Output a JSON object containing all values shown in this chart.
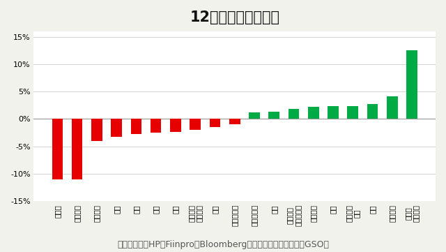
{
  "title": "12月の業種別騰落率",
  "categories": [
    "不動産",
    "メディア",
    "食品飲料",
    "小売",
    "金融",
    "公益",
    "化学",
    "資本財、\nサービス",
    "素材",
    "建設、資材",
    "ヘルスケア",
    "銀行",
    "日用品、\n一般消費財",
    "情報技術",
    "保険",
    "自動車、\n部品",
    "通信",
    "石油ガス",
    "旅行、\nレジャー"
  ],
  "values": [
    -11.0,
    -11.0,
    -4.0,
    -3.2,
    -2.8,
    -2.5,
    -2.3,
    -2.0,
    -1.5,
    -1.0,
    1.2,
    1.3,
    1.8,
    2.2,
    2.3,
    2.3,
    2.8,
    4.2,
    12.5
  ],
  "colors_negative": "#e60000",
  "colors_positive": "#00aa44",
  "yticks": [
    -15,
    -10,
    -5,
    0,
    5,
    10,
    15
  ],
  "ylim": [
    -15,
    16
  ],
  "background_color": "#f2f2ed",
  "plot_bg_color": "#ffffff",
  "source_text": "出所：各企業HP、Fiinpro、Bloomberg、ベトナム国家統計局（GSO）",
  "title_fontsize": 15,
  "tick_fontsize": 8,
  "source_fontsize": 9
}
